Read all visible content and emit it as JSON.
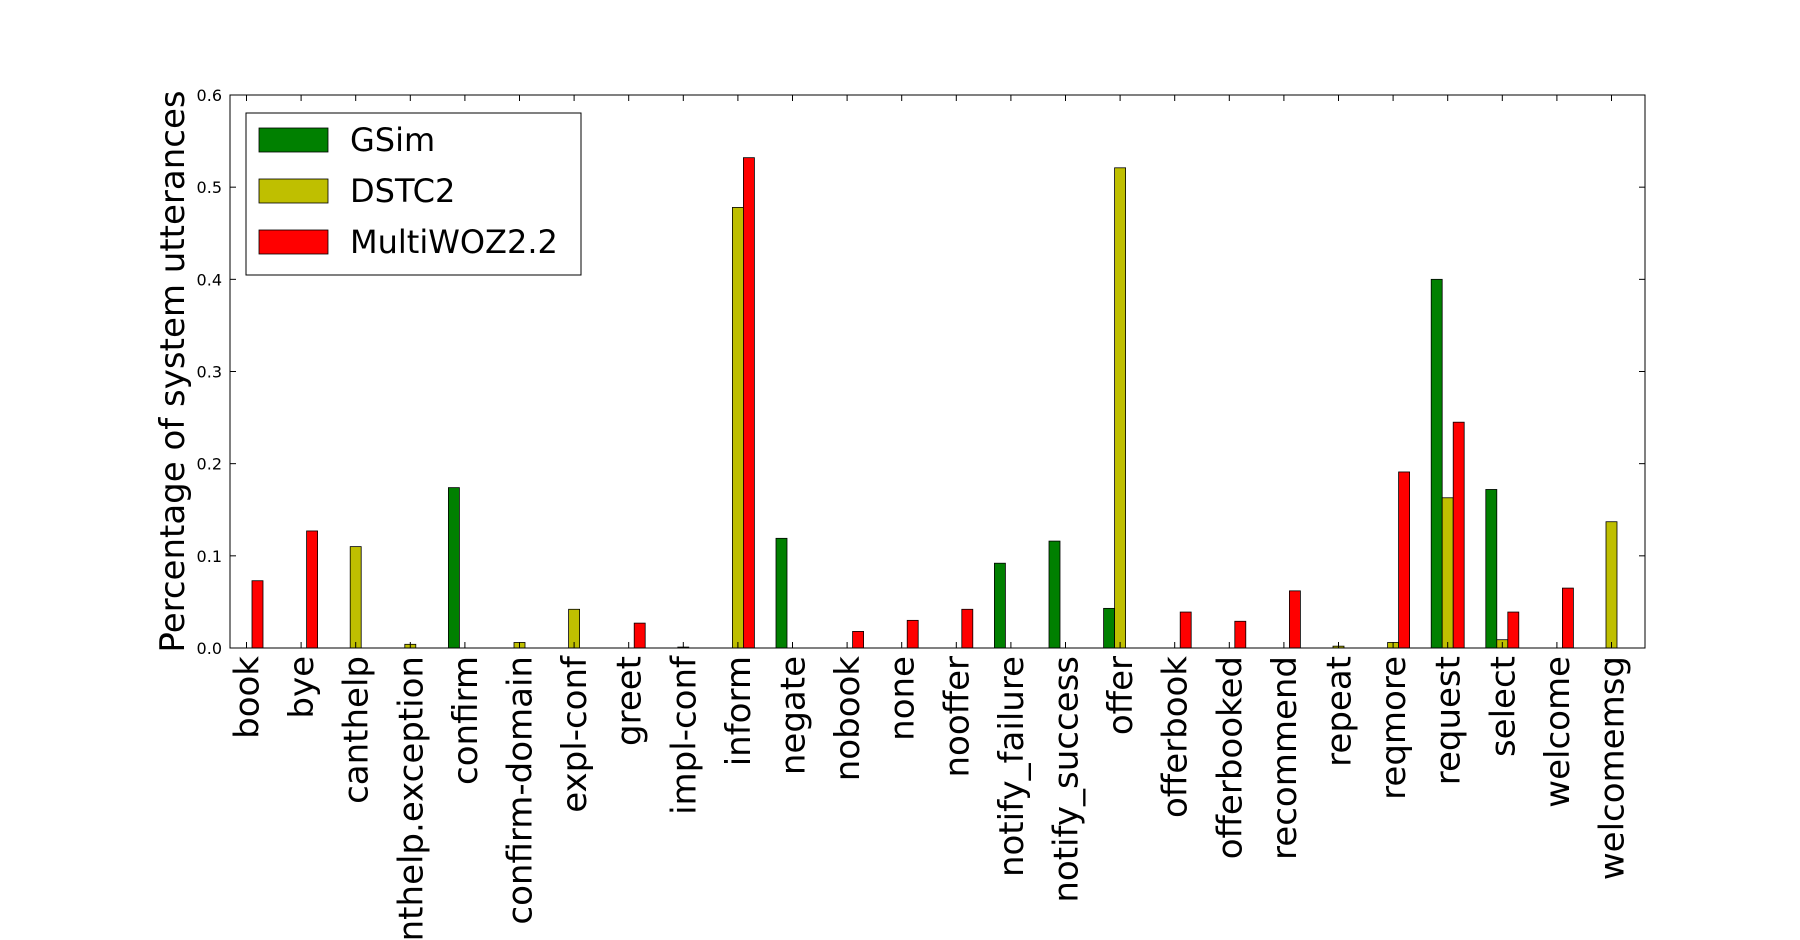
{
  "chart_data": {
    "type": "bar",
    "title": "",
    "xlabel": "",
    "ylabel": "Percentage of system utterances",
    "ylim": [
      0,
      0.6
    ],
    "yticks": [
      "0.0",
      "0.1",
      "0.2",
      "0.3",
      "0.4",
      "0.5",
      "0.6"
    ],
    "legend_position": "top-left",
    "grid": false,
    "categories": [
      "book",
      "bye",
      "canthelp",
      "canthelp.exception",
      "confirm",
      "confirm-domain",
      "expl-conf",
      "greet",
      "impl-conf",
      "inform",
      "negate",
      "nobook",
      "none",
      "nooffer",
      "notify_failure",
      "notify_success",
      "offer",
      "offerbook",
      "offerbooked",
      "recommend",
      "repeat",
      "reqmore",
      "request",
      "select",
      "welcome",
      "welcomemsg"
    ],
    "series": [
      {
        "name": "GSim",
        "color": "#008000",
        "values": [
          0,
          0,
          0,
          0,
          0.174,
          0,
          0,
          0,
          0,
          0,
          0.119,
          0,
          0,
          0,
          0.092,
          0.116,
          0.043,
          0,
          0,
          0,
          0,
          0,
          0.4,
          0.172,
          0,
          0
        ]
      },
      {
        "name": "DSTC2",
        "color": "#bfbf00",
        "values": [
          0,
          0,
          0.11,
          0.004,
          0,
          0.006,
          0.042,
          0,
          0.001,
          0.478,
          0,
          0,
          0,
          0,
          0,
          0,
          0.521,
          0,
          0,
          0,
          0.002,
          0.006,
          0.163,
          0.009,
          0,
          0.137
        ]
      },
      {
        "name": "MultiWOZ2.2",
        "color": "#ff0000",
        "values": [
          0.073,
          0.127,
          0,
          0,
          0,
          0,
          0,
          0.027,
          0,
          0.532,
          0,
          0.018,
          0.03,
          0.042,
          0,
          0,
          0,
          0.039,
          0.029,
          0.062,
          0,
          0.191,
          0.245,
          0.039,
          0.065,
          0
        ]
      }
    ]
  }
}
